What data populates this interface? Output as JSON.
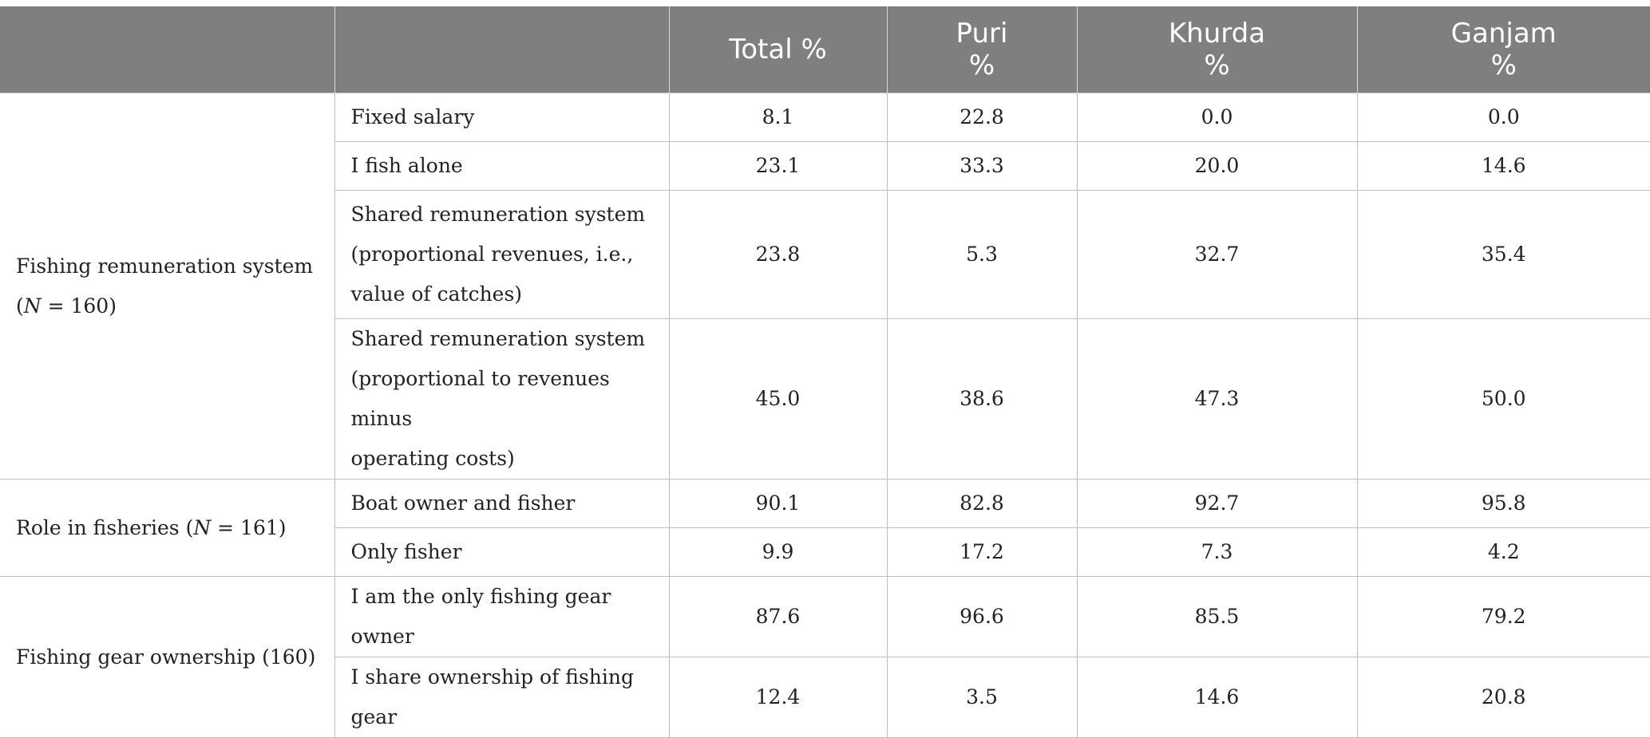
{
  "header": {
    "columns": [
      {
        "lines": [
          "",
          ""
        ]
      },
      {
        "lines": [
          "",
          ""
        ]
      },
      {
        "lines": [
          "Total %",
          ""
        ]
      },
      {
        "lines": [
          "Puri",
          "%"
        ]
      },
      {
        "lines": [
          "Khurda",
          "%"
        ]
      },
      {
        "lines": [
          "Ganjam",
          "%"
        ]
      }
    ]
  },
  "groups": [
    {
      "label_prefix": "Fishing remuneration system",
      "label_n_prefix": "(",
      "label_n_var": "N",
      "label_n_suffix": " = 160)",
      "rows": [
        {
          "item": "Fixed salary",
          "total": "8.1",
          "puri": "22.8",
          "khurda": "0.0",
          "ganjam": "0.0"
        },
        {
          "item": "I fish alone",
          "total": "23.1",
          "puri": "33.3",
          "khurda": "20.0",
          "ganjam": "14.6"
        },
        {
          "item_lines": [
            "Shared remuneration system",
            "(proportional revenues, i.e.,",
            "value of catches)"
          ],
          "total": "23.8",
          "puri": "5.3",
          "khurda": "32.7",
          "ganjam": "35.4"
        },
        {
          "item_lines": [
            "Shared remuneration system",
            "(proportional to revenues minus",
            "operating costs)"
          ],
          "total": "45.0",
          "puri": "38.6",
          "khurda": "47.3",
          "ganjam": "50.0"
        }
      ]
    },
    {
      "label_prefix": "Role in fisheries (",
      "label_n_var": "N",
      "label_n_suffix": " = 161)",
      "rows": [
        {
          "item": "Boat owner and fisher",
          "total": "90.1",
          "puri": "82.8",
          "khurda": "92.7",
          "ganjam": "95.8"
        },
        {
          "item": "Only fisher",
          "total": "9.9",
          "puri": "17.2",
          "khurda": "7.3",
          "ganjam": "4.2"
        }
      ]
    },
    {
      "label": "Fishing gear ownership (160)",
      "rows": [
        {
          "item": "I am the only fishing gear owner",
          "total": "87.6",
          "puri": "96.6",
          "khurda": "85.5",
          "ganjam": "79.2"
        },
        {
          "item": "I share ownership of fishing gear",
          "total": "12.4",
          "puri": "3.5",
          "khurda": "14.6",
          "ganjam": "20.8"
        }
      ]
    }
  ]
}
